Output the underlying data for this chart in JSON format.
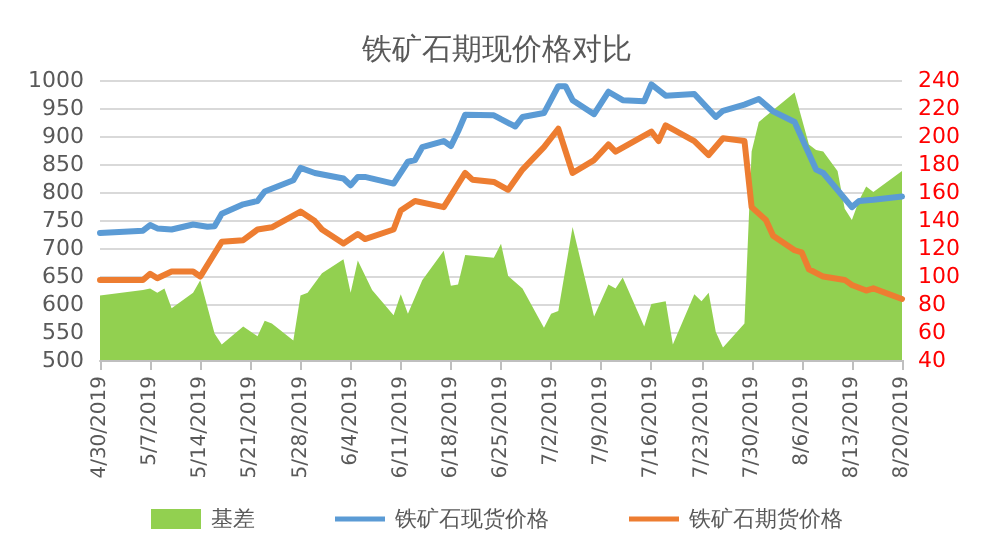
{
  "chart_data": {
    "type": "line",
    "title": "铁矿石期现价格对比",
    "xlim": [
      "2019-04-30",
      "2019-08-20"
    ],
    "xticks": [
      {
        "value": "2019-04-30",
        "label": "4/30/2019"
      },
      {
        "value": "2019-05-07",
        "label": "5/7/2019"
      },
      {
        "value": "2019-05-14",
        "label": "5/14/2019"
      },
      {
        "value": "2019-05-21",
        "label": "5/21/2019"
      },
      {
        "value": "2019-05-28",
        "label": "5/28/2019"
      },
      {
        "value": "2019-06-04",
        "label": "6/4/2019"
      },
      {
        "value": "2019-06-11",
        "label": "6/11/2019"
      },
      {
        "value": "2019-06-18",
        "label": "6/18/2019"
      },
      {
        "value": "2019-06-25",
        "label": "6/25/2019"
      },
      {
        "value": "2019-07-02",
        "label": "7/2/2019"
      },
      {
        "value": "2019-07-09",
        "label": "7/9/2019"
      },
      {
        "value": "2019-07-16",
        "label": "7/16/2019"
      },
      {
        "value": "2019-07-23",
        "label": "7/23/2019"
      },
      {
        "value": "2019-07-30",
        "label": "7/30/2019"
      },
      {
        "value": "2019-08-06",
        "label": "8/6/2019"
      },
      {
        "value": "2019-08-13",
        "label": "8/13/2019"
      },
      {
        "value": "2019-08-20",
        "label": "8/20/2019"
      }
    ],
    "ylim": [
      500,
      1000
    ],
    "yticks": [
      500,
      550,
      600,
      650,
      700,
      750,
      800,
      850,
      900,
      950,
      1000
    ],
    "y2lim": [
      40,
      240
    ],
    "y2ticks": [
      40,
      60,
      80,
      100,
      120,
      140,
      160,
      180,
      200,
      220,
      240
    ],
    "grid": "y",
    "legend": "bottom",
    "marker": "none",
    "line_style": "solid",
    "series": [
      {
        "name": "基差",
        "type": "area",
        "axis": "y2",
        "color": "#92d050",
        "x": [
          "2019-04-30",
          "2019-05-06",
          "2019-05-07",
          "2019-05-08",
          "2019-05-09",
          "2019-05-10",
          "2019-05-13",
          "2019-05-14",
          "2019-05-16",
          "2019-05-17",
          "2019-05-20",
          "2019-05-22",
          "2019-05-23",
          "2019-05-24",
          "2019-05-27",
          "2019-05-28",
          "2019-05-29",
          "2019-05-31",
          "2019-06-03",
          "2019-06-04",
          "2019-06-05",
          "2019-06-07",
          "2019-06-10",
          "2019-06-11",
          "2019-06-12",
          "2019-06-14",
          "2019-06-17",
          "2019-06-18",
          "2019-06-19",
          "2019-06-20",
          "2019-06-24",
          "2019-06-25",
          "2019-06-26",
          "2019-06-28",
          "2019-07-01",
          "2019-07-02",
          "2019-07-03",
          "2019-07-05",
          "2019-07-08",
          "2019-07-10",
          "2019-07-11",
          "2019-07-12",
          "2019-07-15",
          "2019-07-16",
          "2019-07-18",
          "2019-07-19",
          "2019-07-22",
          "2019-07-23",
          "2019-07-24",
          "2019-07-25",
          "2019-07-26",
          "2019-07-29",
          "2019-07-30",
          "2019-07-31",
          "2019-08-05",
          "2019-08-07",
          "2019-08-08",
          "2019-08-09",
          "2019-08-11",
          "2019-08-12",
          "2019-08-13",
          "2019-08-14",
          "2019-08-15",
          "2019-08-16",
          "2019-08-20"
        ],
        "values": [
          86,
          90,
          91,
          88,
          91,
          77,
          88,
          97,
          59,
          51,
          64,
          57,
          68,
          66,
          54,
          86,
          88,
          102,
          112,
          88,
          111,
          90,
          72,
          87,
          73,
          97,
          118,
          93,
          94,
          115,
          113,
          123,
          100,
          91,
          63,
          73,
          75,
          135,
          71,
          94,
          91,
          99,
          64,
          80,
          82,
          51,
          87,
          82,
          88,
          60,
          49,
          66,
          189,
          210,
          231,
          194,
          190,
          189,
          175,
          148,
          140,
          154,
          164,
          160,
          175
        ]
      },
      {
        "name": "铁矿石现货价格",
        "color": "#5b9bd5",
        "x": [
          "2019-04-30",
          "2019-05-06",
          "2019-05-07",
          "2019-05-08",
          "2019-05-10",
          "2019-05-13",
          "2019-05-15",
          "2019-05-16",
          "2019-05-17",
          "2019-05-20",
          "2019-05-22",
          "2019-05-23",
          "2019-05-27",
          "2019-05-28",
          "2019-05-30",
          "2019-06-03",
          "2019-06-04",
          "2019-06-05",
          "2019-06-06",
          "2019-06-10",
          "2019-06-12",
          "2019-06-13",
          "2019-06-14",
          "2019-06-17",
          "2019-06-18",
          "2019-06-19",
          "2019-06-20",
          "2019-06-24",
          "2019-06-25",
          "2019-06-27",
          "2019-06-28",
          "2019-07-01",
          "2019-07-03",
          "2019-07-04",
          "2019-07-05",
          "2019-07-08",
          "2019-07-10",
          "2019-07-12",
          "2019-07-15",
          "2019-07-16",
          "2019-07-18",
          "2019-07-22",
          "2019-07-25",
          "2019-07-26",
          "2019-07-29",
          "2019-07-31",
          "2019-08-02",
          "2019-08-05",
          "2019-08-08",
          "2019-08-09",
          "2019-08-13",
          "2019-08-14",
          "2019-08-16",
          "2019-08-20"
        ],
        "values": [
          727,
          731,
          741,
          735,
          733,
          742,
          738,
          739,
          761,
          778,
          784,
          801,
          821,
          843,
          834,
          824,
          812,
          827,
          827,
          815,
          854,
          857,
          880,
          891,
          882,
          908,
          938,
          937,
          930,
          917,
          934,
          941,
          989,
          989,
          964,
          939,
          979,
          964,
          962,
          992,
          972,
          975,
          934,
          945,
          956,
          966,
          944,
          925,
          840,
          834,
          773,
          784,
          786,
          792
        ]
      },
      {
        "name": "铁矿石期货价格",
        "color": "#ed7d31",
        "x": [
          "2019-04-30",
          "2019-05-06",
          "2019-05-07",
          "2019-05-08",
          "2019-05-10",
          "2019-05-13",
          "2019-05-14",
          "2019-05-17",
          "2019-05-20",
          "2019-05-22",
          "2019-05-24",
          "2019-05-28",
          "2019-05-30",
          "2019-05-31",
          "2019-06-03",
          "2019-06-05",
          "2019-06-06",
          "2019-06-10",
          "2019-06-11",
          "2019-06-13",
          "2019-06-17",
          "2019-06-20",
          "2019-06-21",
          "2019-06-24",
          "2019-06-26",
          "2019-06-28",
          "2019-07-01",
          "2019-07-03",
          "2019-07-05",
          "2019-07-08",
          "2019-07-10",
          "2019-07-11",
          "2019-07-16",
          "2019-07-17",
          "2019-07-18",
          "2019-07-22",
          "2019-07-24",
          "2019-07-26",
          "2019-07-29",
          "2019-07-30",
          "2019-08-01",
          "2019-08-02",
          "2019-08-05",
          "2019-08-06",
          "2019-08-07",
          "2019-08-09",
          "2019-08-12",
          "2019-08-13",
          "2019-08-15",
          "2019-08-16",
          "2019-08-20"
        ],
        "values": [
          643,
          643,
          654,
          646,
          658,
          658,
          649,
          711,
          714,
          733,
          737,
          765,
          748,
          733,
          708,
          725,
          716,
          733,
          767,
          784,
          773,
          834,
          822,
          818,
          804,
          840,
          880,
          913,
          834,
          857,
          885,
          872,
          908,
          891,
          919,
          891,
          866,
          896,
          891,
          773,
          750,
          722,
          696,
          692,
          662,
          649,
          643,
          634,
          624,
          628,
          609
        ]
      }
    ]
  }
}
